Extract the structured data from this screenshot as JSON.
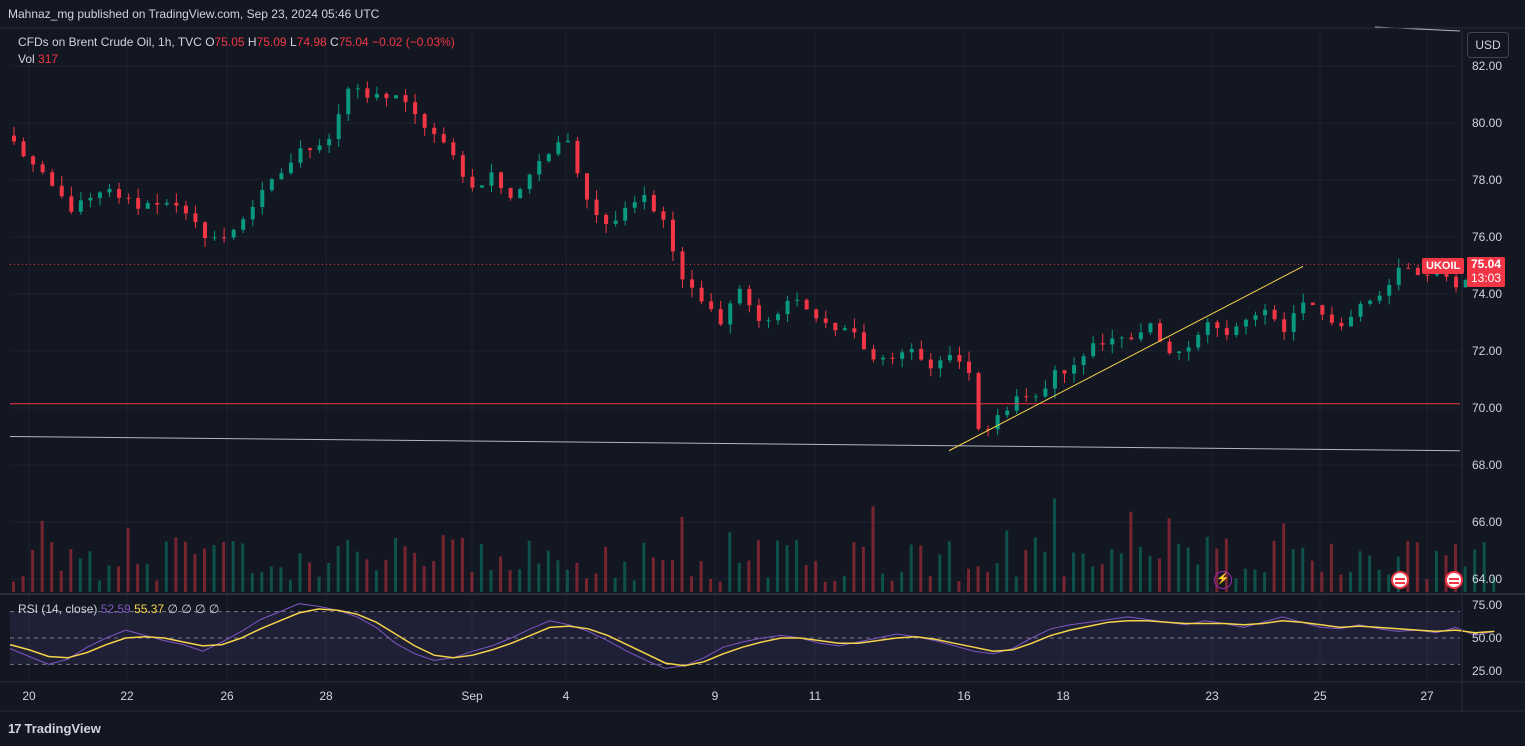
{
  "header": {
    "published": "Mahnaz_mg published on TradingView.com, Sep 23, 2024 05:46 UTC"
  },
  "legend": {
    "title": "CFDs on Brent Crude Oil, 1h, TVC",
    "open_label": "O",
    "open": "75.05",
    "high_label": "H",
    "high": "75.09",
    "low_label": "L",
    "low": "74.98",
    "close_label": "C",
    "close": "75.04",
    "change": "−0.02 (−0.03%)",
    "vol_label": "Vol",
    "vol": "317"
  },
  "rsi_legend": {
    "label": "RSI (14, close)",
    "value1": "52.59",
    "value2": "55.37",
    "na1": "∅",
    "na2": "∅",
    "na3": "∅",
    "na4": "∅"
  },
  "currency_button": "USD",
  "price_tag": {
    "symbol": "UKOIL",
    "value": "75.04",
    "countdown": "13:03"
  },
  "footer": {
    "brand": "TradingView",
    "logo": "17"
  },
  "colors": {
    "up": "#089981",
    "down": "#f23645",
    "trend": "#f5d44b",
    "support": "#f23645",
    "long_line": "#b2b5be",
    "rsi": "#7e57c2",
    "rsi_ma": "#f5d44b",
    "background": "#131722"
  },
  "icons": [
    "flash-icon",
    "us-flag-icon"
  ],
  "chart_data": [
    {
      "type": "candlestick",
      "title": "CFDs on Brent Crude Oil, 1h, TVC",
      "x_ticks": [
        "20",
        "22",
        "26",
        "28",
        "Sep",
        "4",
        "9",
        "11",
        "16",
        "18",
        "23",
        "25",
        "27"
      ],
      "y_ticks": [
        "82.00",
        "80.00",
        "78.00",
        "76.00",
        "74.00",
        "72.00",
        "70.00",
        "68.00",
        "66.00",
        "64.00"
      ],
      "ylim": [
        63.5,
        83.5
      ],
      "grid": true,
      "last_price": 75.04,
      "close_path": [
        [
          0,
          79.3
        ],
        [
          3,
          78.1
        ],
        [
          6,
          77.0
        ],
        [
          10,
          77.6
        ],
        [
          13,
          77.1
        ],
        [
          16,
          77.3
        ],
        [
          20,
          76.1
        ],
        [
          22,
          75.9
        ],
        [
          24,
          76.7
        ],
        [
          27,
          77.9
        ],
        [
          30,
          79.0
        ],
        [
          33,
          79.5
        ],
        [
          35,
          81.2
        ],
        [
          37,
          80.9
        ],
        [
          40,
          81.0
        ],
        [
          42,
          80.2
        ],
        [
          44,
          79.6
        ],
        [
          46,
          78.8
        ],
        [
          48,
          77.7
        ],
        [
          50,
          78.2
        ],
        [
          52,
          77.3
        ],
        [
          55,
          78.7
        ],
        [
          58,
          79.4
        ],
        [
          60,
          77.4
        ],
        [
          62,
          76.4
        ],
        [
          64,
          77.1
        ],
        [
          66,
          77.5
        ],
        [
          68,
          76.5
        ],
        [
          70,
          74.5
        ],
        [
          72,
          73.7
        ],
        [
          74,
          73.1
        ],
        [
          76,
          74.2
        ],
        [
          78,
          73.0
        ],
        [
          80,
          73.3
        ],
        [
          82,
          73.9
        ],
        [
          84,
          73.0
        ],
        [
          86,
          72.9
        ],
        [
          88,
          72.6
        ],
        [
          90,
          71.6
        ],
        [
          92,
          71.8
        ],
        [
          94,
          71.9
        ],
        [
          96,
          71.5
        ],
        [
          98,
          71.8
        ],
        [
          100,
          71.2
        ],
        [
          101,
          69.2
        ],
        [
          103,
          69.6
        ],
        [
          105,
          70.5
        ],
        [
          107,
          70.3
        ],
        [
          109,
          71.2
        ],
        [
          111,
          71.4
        ],
        [
          113,
          72.3
        ],
        [
          115,
          72.5
        ],
        [
          117,
          72.3
        ],
        [
          119,
          72.8
        ],
        [
          121,
          71.8
        ],
        [
          123,
          72.3
        ],
        [
          125,
          73.0
        ],
        [
          127,
          72.5
        ],
        [
          129,
          73.1
        ],
        [
          131,
          73.3
        ],
        [
          133,
          72.8
        ],
        [
          135,
          73.8
        ],
        [
          137,
          73.3
        ],
        [
          139,
          72.8
        ],
        [
          141,
          73.7
        ],
        [
          143,
          74.0
        ],
        [
          145,
          74.9
        ],
        [
          147,
          74.6
        ],
        [
          149,
          74.7
        ],
        [
          151,
          74.3
        ],
        [
          153,
          74.7
        ],
        [
          155,
          75.04
        ]
      ],
      "volume": "relative bars, red/green",
      "drawings": [
        {
          "name": "support-line",
          "price": 70.15
        },
        {
          "name": "long-trendline",
          "from": [
            0,
            69.0
          ],
          "to": [
            193,
            68.5
          ]
        },
        {
          "name": "rising-trendline",
          "from": [
            100,
            68.5
          ],
          "to": [
            168,
            74.97
          ]
        }
      ]
    },
    {
      "type": "line",
      "title": "RSI (14, close)",
      "y_ticks": [
        "75.00",
        "50.00",
        "25.00"
      ],
      "ylim": [
        20,
        80
      ],
      "bands": [
        70,
        30
      ],
      "series": [
        {
          "name": "RSI",
          "values": [
            42,
            36,
            30,
            34,
            43,
            50,
            56,
            52,
            48,
            45,
            40,
            47,
            55,
            64,
            70,
            76,
            74,
            71,
            66,
            58,
            46,
            38,
            33,
            35,
            40,
            44,
            50,
            57,
            63,
            60,
            55,
            48,
            40,
            33,
            27,
            29,
            35,
            43,
            47,
            50,
            52,
            50,
            46,
            44,
            47,
            50,
            53,
            51,
            48,
            44,
            40,
            38,
            42,
            50,
            57,
            60,
            62,
            64,
            66,
            64,
            62,
            60,
            63,
            61,
            58,
            62,
            66,
            62,
            58,
            57,
            60,
            57,
            55,
            56,
            54,
            58,
            52,
            55
          ]
        },
        {
          "name": "RSI MA",
          "values": [
            45,
            41,
            36,
            35,
            39,
            45,
            50,
            51,
            50,
            47,
            44,
            45,
            50,
            57,
            63,
            69,
            72,
            71,
            68,
            62,
            53,
            44,
            37,
            35,
            37,
            41,
            46,
            52,
            58,
            59,
            57,
            52,
            45,
            38,
            31,
            29,
            32,
            38,
            43,
            47,
            50,
            50,
            48,
            46,
            46,
            48,
            50,
            51,
            49,
            46,
            43,
            40,
            41,
            46,
            52,
            56,
            59,
            62,
            63,
            63,
            62,
            61,
            61,
            61,
            60,
            61,
            63,
            62,
            60,
            58,
            59,
            58,
            57,
            56,
            55,
            56,
            54,
            55
          ]
        }
      ]
    }
  ]
}
